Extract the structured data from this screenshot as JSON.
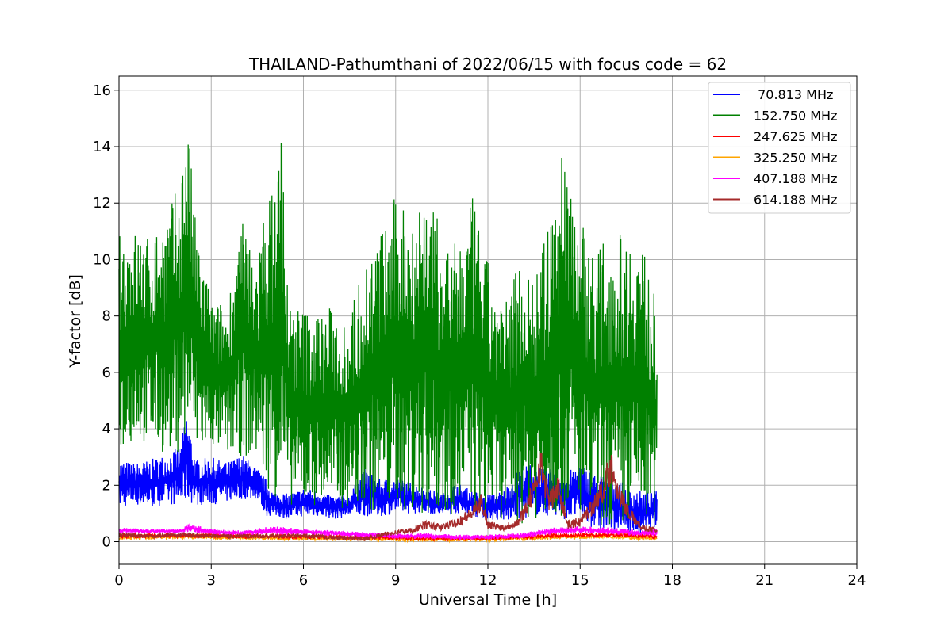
{
  "chart_data": {
    "type": "line",
    "title": "THAILAND-Pathumthani of 2022/06/15 with focus code = 62",
    "xlabel": "Universal Time [h]",
    "ylabel": "Y-factor [dB]",
    "xlim": [
      0,
      24
    ],
    "ylim": [
      -0.8,
      16.5
    ],
    "xticks": [
      0,
      3,
      6,
      9,
      12,
      15,
      18,
      21,
      24
    ],
    "yticks": [
      0,
      2,
      4,
      6,
      8,
      10,
      12,
      14,
      16
    ],
    "grid": true,
    "legend_position": "top-right",
    "series": [
      {
        "name": " 70.813 MHz",
        "color": "#0000ff",
        "x": [
          0,
          0.5,
          1,
          1.5,
          2,
          2.2,
          2.5,
          3,
          3.5,
          4,
          4.5,
          4.8,
          5,
          5.5,
          6,
          6.5,
          7,
          7.5,
          8,
          8.5,
          9,
          9.5,
          10,
          10.5,
          11,
          11.5,
          12,
          12.5,
          13,
          13.5,
          14,
          14.5,
          15,
          15.5,
          16,
          16.5,
          17,
          17.5
        ],
        "lower": [
          1.2,
          1.3,
          1.2,
          1.3,
          1.3,
          1.4,
          1.3,
          1.3,
          1.4,
          1.5,
          1.5,
          0.9,
          0.9,
          0.8,
          0.9,
          0.9,
          0.8,
          0.9,
          0.9,
          0.9,
          1.0,
          1.0,
          1.0,
          0.9,
          1.0,
          0.9,
          0.8,
          0.7,
          0.8,
          0.9,
          0.9,
          0.8,
          0.8,
          0.4,
          0.3,
          0.3,
          0.2,
          0.5
        ],
        "upper": [
          2.9,
          2.8,
          2.9,
          3.1,
          3.4,
          4.6,
          2.9,
          3.0,
          2.8,
          3.1,
          2.6,
          2.2,
          1.8,
          1.7,
          1.9,
          1.8,
          1.6,
          1.7,
          2.6,
          2.2,
          2.3,
          2.1,
          1.9,
          1.7,
          2.1,
          1.8,
          1.7,
          1.8,
          2.6,
          2.8,
          2.6,
          2.4,
          2.8,
          2.4,
          2.4,
          2.0,
          1.8,
          1.8
        ]
      },
      {
        "name": "152.750 MHz",
        "color": "#008000",
        "x": [
          0,
          0.3,
          0.6,
          1,
          1.5,
          2,
          2.2,
          2.5,
          3,
          3.5,
          4,
          4.5,
          4.8,
          5,
          5.3,
          5.5,
          6,
          6.5,
          7,
          7.5,
          8,
          8.5,
          9,
          9.5,
          10,
          10.5,
          11,
          11.5,
          12,
          12.5,
          13,
          13.5,
          14,
          14.5,
          15,
          15.5,
          16,
          16.5,
          17,
          17.5
        ],
        "lower": [
          3.2,
          3.4,
          3.6,
          3.3,
          3.1,
          3.2,
          3.4,
          3.0,
          3.3,
          3.1,
          3.0,
          2.9,
          2.0,
          1.6,
          1.5,
          1.3,
          1.2,
          1.3,
          1.1,
          1.2,
          1.1,
          1.0,
          1.1,
          1.0,
          0.9,
          1.0,
          0.9,
          0.9,
          0.8,
          0.8,
          0.6,
          0.8,
          0.9,
          0.8,
          0.9,
          0.5,
          0.4,
          0.3,
          0.5,
          0.7
        ],
        "upper": [
          10.9,
          11.0,
          11.1,
          10.8,
          11.6,
          12.8,
          15.6,
          11.2,
          8.6,
          8.4,
          11.4,
          10.0,
          12.3,
          12.5,
          15.3,
          8.6,
          8.3,
          8.2,
          8.4,
          8.1,
          10.1,
          11.0,
          12.3,
          12.1,
          12.6,
          11.0,
          10.5,
          12.2,
          10.0,
          8.2,
          10.4,
          9.3,
          11.3,
          14.7,
          11.6,
          10.4,
          10.9,
          11.0,
          10.9,
          8.3
        ]
      },
      {
        "name": "247.625 MHz",
        "color": "#ff0000",
        "x": [
          0,
          2,
          4,
          6,
          8,
          10,
          12,
          14,
          16,
          17.5
        ],
        "values": [
          0.2,
          0.22,
          0.2,
          0.18,
          0.16,
          0.12,
          0.12,
          0.2,
          0.25,
          0.2
        ]
      },
      {
        "name": "325.250 MHz",
        "color": "#ffa500",
        "x": [
          0,
          2,
          4,
          6,
          8,
          10,
          12,
          14,
          16,
          17.5
        ],
        "values": [
          0.15,
          0.18,
          0.15,
          0.12,
          0.1,
          0.08,
          0.08,
          0.15,
          0.2,
          0.1
        ]
      },
      {
        "name": "407.188 MHz",
        "color": "#ff00ff",
        "x": [
          0,
          1,
          2,
          2.3,
          3,
          4,
          5,
          6,
          7,
          8,
          9,
          10,
          11,
          12,
          13,
          14,
          15,
          16,
          17,
          17.5
        ],
        "lower": [
          0.3,
          0.3,
          0.3,
          0.35,
          0.25,
          0.2,
          0.25,
          0.25,
          0.2,
          0.15,
          0.1,
          0.1,
          0.05,
          0.08,
          0.1,
          0.25,
          0.3,
          0.25,
          0.2,
          0.2
        ],
        "upper": [
          0.5,
          0.45,
          0.45,
          0.65,
          0.45,
          0.4,
          0.55,
          0.45,
          0.4,
          0.35,
          0.3,
          0.3,
          0.25,
          0.25,
          0.3,
          0.5,
          0.55,
          0.5,
          0.4,
          0.5
        ]
      },
      {
        "name": "614.188 MHz",
        "color": "#a52a2a",
        "x": [
          0,
          1,
          2,
          3,
          4,
          5,
          6,
          7,
          8,
          8.8,
          9.5,
          10,
          10.5,
          11,
          11.5,
          11.8,
          12,
          12.5,
          13,
          13.5,
          13.7,
          14,
          14.3,
          14.6,
          15,
          15.5,
          15.8,
          16,
          16.3,
          16.6,
          17,
          17.5
        ],
        "values": [
          0.25,
          0.2,
          0.25,
          0.2,
          0.2,
          0.2,
          0.2,
          0.15,
          0.1,
          0.3,
          0.4,
          0.6,
          0.5,
          0.7,
          1.0,
          1.4,
          0.6,
          0.5,
          0.7,
          1.8,
          2.8,
          1.4,
          1.9,
          0.6,
          0.7,
          1.4,
          2.0,
          2.7,
          1.6,
          1.0,
          0.5,
          0.4
        ]
      }
    ]
  }
}
